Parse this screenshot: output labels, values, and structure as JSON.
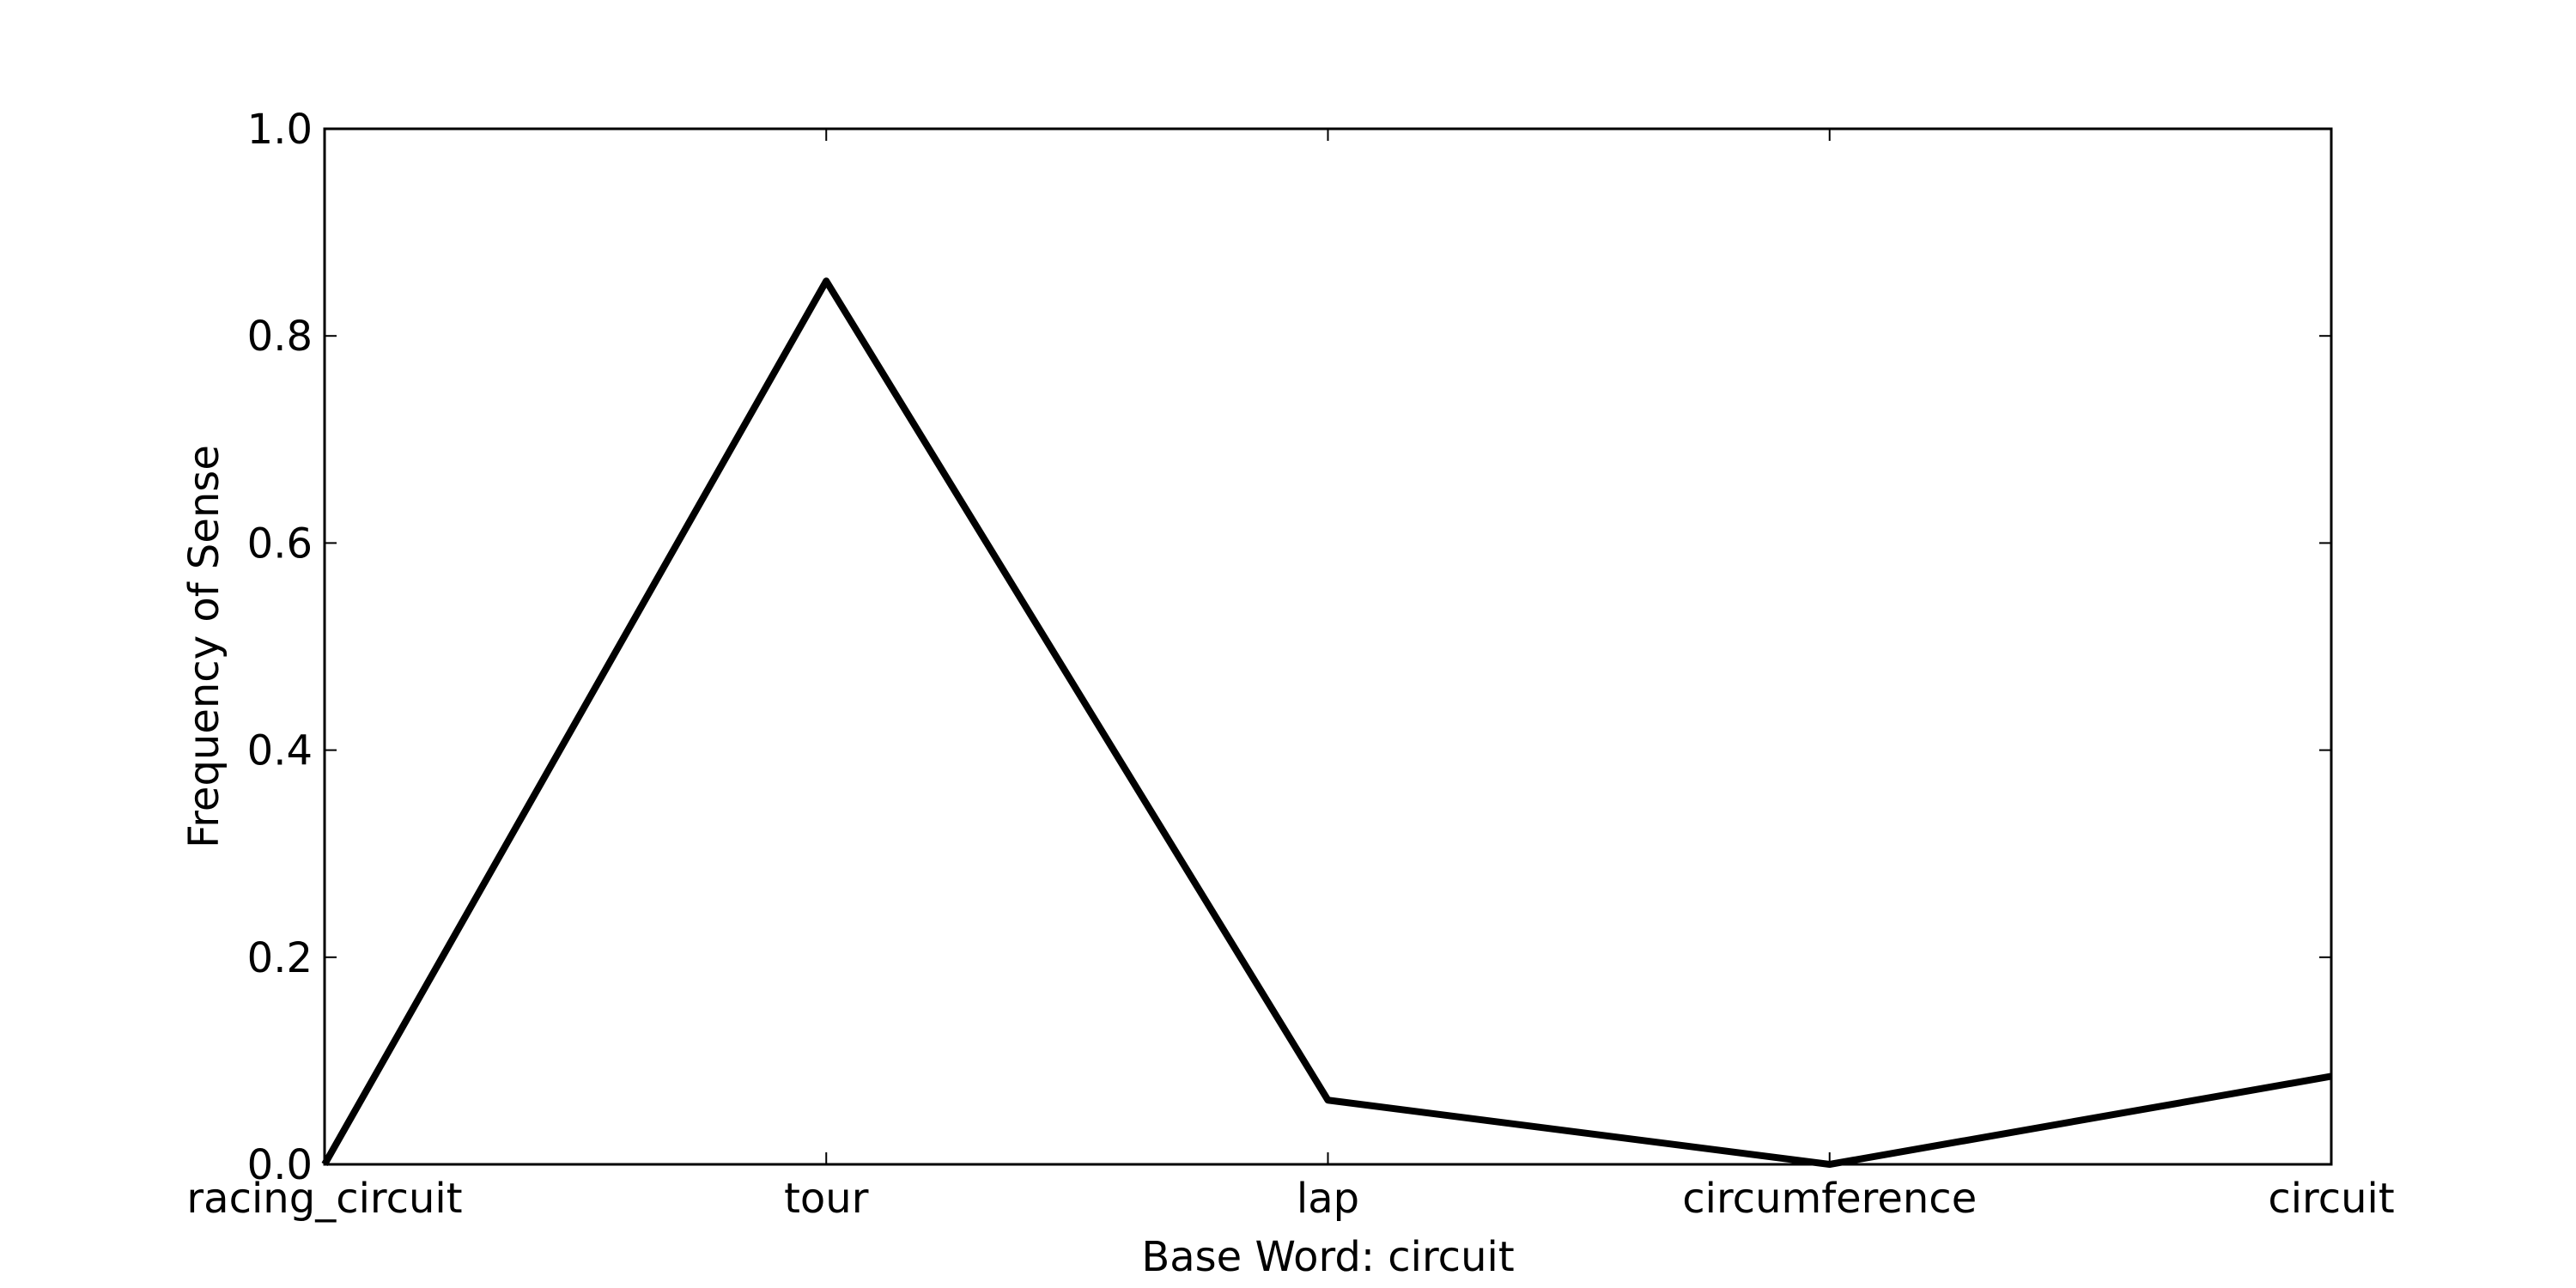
{
  "chart_data": {
    "type": "line",
    "categories": [
      "racing_circuit",
      "tour",
      "lap",
      "circumference",
      "circuit"
    ],
    "series": [
      {
        "values": [
          0.0,
          0.853,
          0.062,
          0.0,
          0.085
        ],
        "color": "#000000"
      }
    ],
    "xlabel": "Base Word: circuit",
    "ylabel": "Frequency of Sense",
    "ylim": [
      0.0,
      1.0
    ],
    "yticks": [
      0.0,
      0.2,
      0.4,
      0.6,
      0.8,
      1.0
    ],
    "ytick_labels": [
      "0.0",
      "0.2",
      "0.4",
      "0.6",
      "0.8",
      "1.0"
    ],
    "grid": false,
    "legend": "none"
  }
}
